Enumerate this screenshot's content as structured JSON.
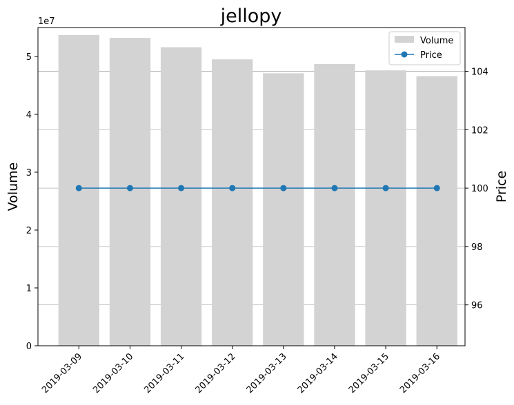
{
  "chart_data": {
    "type": "bar+line",
    "title": "jellopy",
    "xlabel": "",
    "categories": [
      "2019-03-09",
      "2019-03-10",
      "2019-03-11",
      "2019-03-12",
      "2019-03-13",
      "2019-03-14",
      "2019-03-15",
      "2019-03-16"
    ],
    "left_axis": {
      "label": "Volume",
      "offset_text": "1e7",
      "ylim": [
        0,
        55000000
      ],
      "ticks": [
        0,
        10000000,
        20000000,
        30000000,
        40000000,
        50000000
      ],
      "tick_labels": [
        "0",
        "1",
        "2",
        "3",
        "4",
        "5"
      ]
    },
    "right_axis": {
      "label": "Price",
      "ylim": [
        94.6,
        105.5
      ],
      "ticks": [
        96,
        98,
        100,
        102,
        104
      ],
      "tick_labels": [
        "96",
        "98",
        "100",
        "102",
        "104"
      ]
    },
    "series": [
      {
        "name": "Volume",
        "type": "bar",
        "axis": "left",
        "color": "#d3d3d3",
        "values": [
          53700000,
          53200000,
          51600000,
          49500000,
          47100000,
          48700000,
          47600000,
          46600000
        ]
      },
      {
        "name": "Price",
        "type": "line",
        "axis": "right",
        "color": "#1f77b4",
        "marker": "circle",
        "values": [
          100,
          100,
          100,
          100,
          100,
          100,
          100,
          100
        ]
      }
    ],
    "grid": "horizontal on right axis ticks",
    "legend_position": "top-right"
  }
}
